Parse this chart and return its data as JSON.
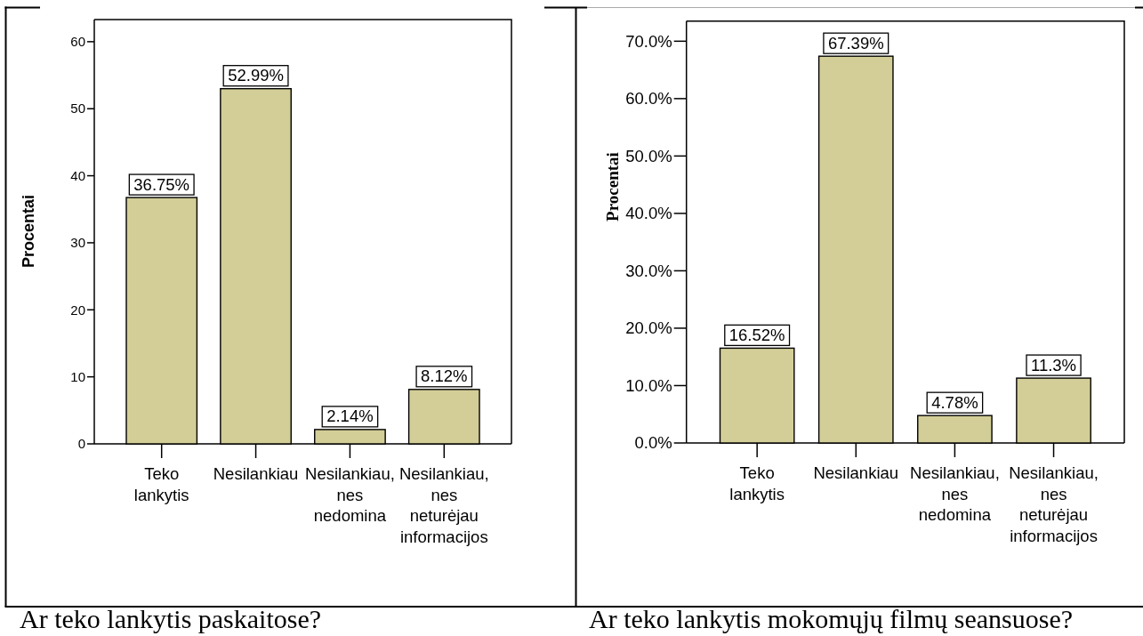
{
  "chart_data": [
    {
      "type": "bar",
      "title": "Ar teko lankytis paskaitose?",
      "ylabel": "Procentai",
      "categories": [
        "Teko lankytis",
        "Nesilankiau",
        "Nesilankiau, nes nedomina",
        "Nesilankiau, nes neturėjau informacijos"
      ],
      "values": [
        36.75,
        52.99,
        2.14,
        8.12
      ],
      "value_labels": [
        "36.75%",
        "52.99%",
        "2.14%",
        "8.12%"
      ],
      "color": "#d3ce97",
      "ylim": [
        0,
        63.3
      ],
      "yticks": [
        0,
        10,
        20,
        30,
        40,
        50,
        60
      ]
    },
    {
      "type": "bar",
      "title": "Ar teko lankytis mokomųjų filmų seansuose?",
      "ylabel": "Procentai",
      "categories": [
        "Teko lankytis",
        "Nesilankiau",
        "Nesilankiau, nes nedomina",
        "Nesilankiau, nes neturėjau informacijos"
      ],
      "values": [
        16.52,
        67.39,
        4.78,
        11.3
      ],
      "value_labels": [
        "16.52%",
        "67.39%",
        "4.78%",
        "11.3%"
      ],
      "color": "#d3ce97",
      "ylim": [
        0,
        73.5
      ],
      "yticks": [
        {
          "value": 0,
          "label": "0.0%"
        },
        {
          "value": 10,
          "label": "10.0%"
        },
        {
          "value": 20,
          "label": "20.0%"
        },
        {
          "value": 30,
          "label": "30.0%"
        },
        {
          "value": 40,
          "label": "40.0%"
        },
        {
          "value": 50,
          "label": "50.0%"
        },
        {
          "value": 60,
          "label": "60.0%"
        },
        {
          "value": 70,
          "label": "70.0%"
        }
      ]
    }
  ]
}
